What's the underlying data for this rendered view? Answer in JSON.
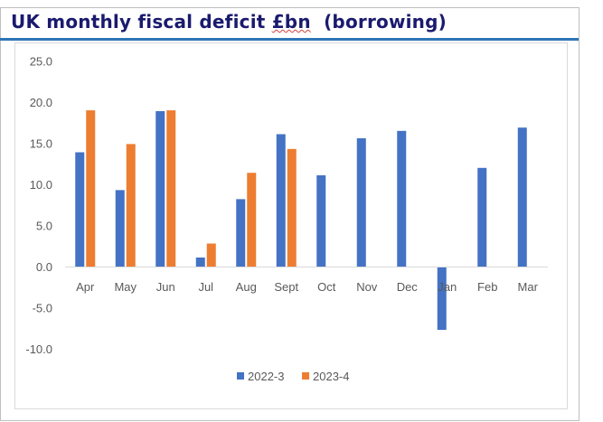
{
  "title": "UK monthly fiscal deficit £bn  (borrowing)",
  "colors": {
    "title": "#1a1a6e",
    "rule": "#2e75b6",
    "series1": "#4472c4",
    "series2": "#ed7d31"
  },
  "chart_data": {
    "type": "bar",
    "title": "UK monthly fiscal deficit £bn  (borrowing)",
    "xlabel": "",
    "ylabel": "",
    "categories": [
      "Apr",
      "May",
      "Jun",
      "Jul",
      "Aug",
      "Sept",
      "Oct",
      "Nov",
      "Dec",
      "Jan",
      "Feb",
      "Mar"
    ],
    "series": [
      {
        "name": "2022-3",
        "values": [
          13.9,
          9.3,
          18.9,
          1.1,
          8.2,
          16.1,
          11.1,
          15.6,
          16.5,
          -7.7,
          12.0,
          16.9
        ]
      },
      {
        "name": "2023-4",
        "values": [
          19.0,
          14.9,
          19.0,
          2.8,
          11.4,
          14.3,
          null,
          null,
          null,
          null,
          null,
          null
        ]
      }
    ],
    "ylim": [
      -10,
      25
    ],
    "yticks": [
      "25.0",
      "20.0",
      "15.0",
      "10.0",
      "5.0",
      "0.0",
      "-5.0",
      "-10.0"
    ],
    "ytick_values": [
      25,
      20,
      15,
      10,
      5,
      0,
      -5,
      -10
    ],
    "grid": false,
    "legend": "bottom"
  }
}
